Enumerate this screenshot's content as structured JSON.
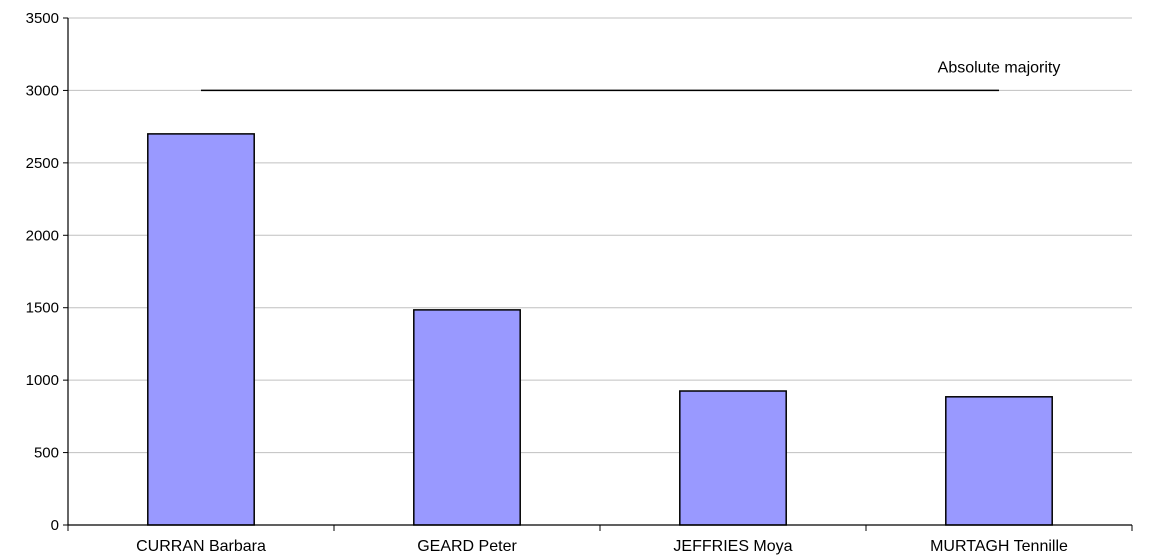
{
  "chart_data": {
    "type": "bar",
    "categories": [
      "CURRAN Barbara",
      "GEARD Peter",
      "JEFFRIES Moya",
      "MURTAGH Tennille"
    ],
    "values": [
      2700,
      1485,
      925,
      885
    ],
    "ylim": [
      0,
      3500
    ],
    "yticks": [
      0,
      500,
      1000,
      1500,
      2000,
      2500,
      3000,
      3500
    ],
    "grid": true,
    "legend": "none",
    "reference_line": {
      "label": "Absolute majority",
      "value": 3000
    },
    "colors": {
      "bar_fill": "#9999ff",
      "bar_stroke": "#000000",
      "grid": "#c0c0c0",
      "axis": "#000000"
    }
  }
}
